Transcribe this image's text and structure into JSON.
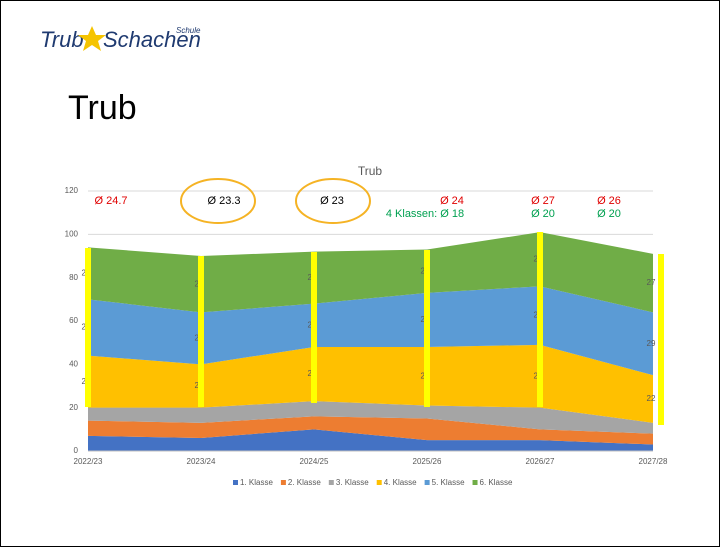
{
  "logo": {
    "left": "Trub",
    "right": "Schachen",
    "small": "Schule"
  },
  "heading": "Trub",
  "chart_data": {
    "type": "stacked-area",
    "title": "Trub",
    "categories": [
      "2022/23",
      "2023/24",
      "2024/25",
      "2025/26",
      "2026/27",
      "2027/28"
    ],
    "series": [
      {
        "name": "1. Klasse",
        "color": "#4472c4",
        "values": [
          7,
          6,
          10,
          5,
          5,
          3
        ],
        "labels": false
      },
      {
        "name": "2. Klasse",
        "color": "#ed7d31",
        "values": [
          7,
          7,
          6,
          10,
          5,
          5
        ],
        "labels": false
      },
      {
        "name": "3. Klasse",
        "color": "#a5a5a5",
        "values": [
          6,
          7,
          7,
          6,
          10,
          5
        ],
        "labels": false
      },
      {
        "name": "4. Klasse",
        "color": "#ffc000",
        "values": [
          24,
          20,
          25,
          27,
          29,
          22
        ],
        "labels": true
      },
      {
        "name": "5. Klasse",
        "color": "#5b9bd5",
        "values": [
          26,
          24,
          20,
          25,
          27,
          29
        ],
        "labels": true
      },
      {
        "name": "6. Klasse",
        "color": "#70ad47",
        "values": [
          24,
          26,
          24,
          20,
          25,
          27
        ],
        "labels": true
      }
    ],
    "ylim": [
      0,
      120
    ],
    "yticks": [
      0,
      20,
      40,
      60,
      80,
      100,
      120
    ],
    "grid": true,
    "legend": "bottom",
    "annotations": [
      {
        "text": "Ø 24.7",
        "color": "#e00000"
      },
      {
        "text": "Ø 23.3",
        "color": "#000000"
      },
      {
        "text": "Ø 23",
        "color": "#000000"
      },
      {
        "text": "Ø 24",
        "color": "#e00000"
      },
      {
        "text": "4 Klassen: Ø 18",
        "color": "#00a050"
      },
      {
        "text": "Ø 27",
        "color": "#e00000"
      },
      {
        "text": "Ø 20",
        "color": "#00a050"
      },
      {
        "text": "Ø 26",
        "color": "#e00000"
      },
      {
        "text": "Ø 20",
        "color": "#00a050"
      }
    ]
  }
}
